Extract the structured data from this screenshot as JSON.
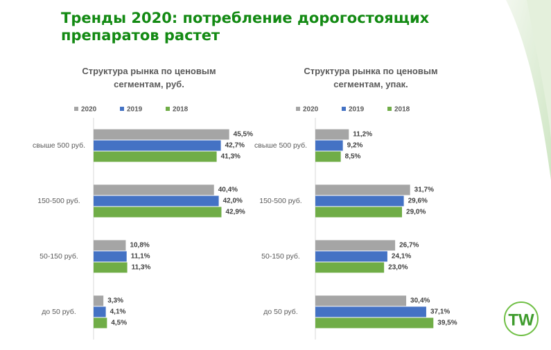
{
  "title": "Тренды 2020: потребление дорогостоящих препаратов растет",
  "logo_text": "TW",
  "chart_data": [
    {
      "type": "bar",
      "orientation": "horizontal",
      "title": "Структура рынка по ценовым сегментам, руб.",
      "categories": [
        "свыше 500 руб.",
        "150-500 руб.",
        "50-150 руб.",
        "до 50 руб."
      ],
      "series": [
        {
          "name": "2020",
          "color": "#a5a5a5",
          "values": [
            45.5,
            40.4,
            10.8,
            3.3
          ],
          "value_labels": [
            "45,5%",
            "40,4%",
            "10,8%",
            "3,3%"
          ]
        },
        {
          "name": "2019",
          "color": "#4472c4",
          "values": [
            42.7,
            42.0,
            11.1,
            4.1
          ],
          "value_labels": [
            "42,7%",
            "42,0%",
            "11,1%",
            "4,1%"
          ]
        },
        {
          "name": "2018",
          "color": "#70ad47",
          "values": [
            41.3,
            42.9,
            11.3,
            4.5
          ],
          "value_labels": [
            "41,3%",
            "42,9%",
            "11,3%",
            "4,5%"
          ]
        }
      ],
      "xlim": [
        0,
        50
      ],
      "legend": "top"
    },
    {
      "type": "bar",
      "orientation": "horizontal",
      "title": "Структура рынка по ценовым сегментам, упак.",
      "categories": [
        "свыше 500 руб.",
        "150-500 руб.",
        "50-150 руб.",
        "до 50 руб."
      ],
      "series": [
        {
          "name": "2020",
          "color": "#a5a5a5",
          "values": [
            11.2,
            31.7,
            26.7,
            30.4
          ],
          "value_labels": [
            "11,2%",
            "31,7%",
            "26,7%",
            "30,4%"
          ]
        },
        {
          "name": "2019",
          "color": "#4472c4",
          "values": [
            9.2,
            29.6,
            24.1,
            37.1
          ],
          "value_labels": [
            "9,2%",
            "29,6%",
            "24,1%",
            "37,1%"
          ]
        },
        {
          "name": "2018",
          "color": "#70ad47",
          "values": [
            8.5,
            29.0,
            23.0,
            39.5
          ],
          "value_labels": [
            "8,5%",
            "29,0%",
            "23,0%",
            "39,5%"
          ]
        }
      ],
      "xlim": [
        0,
        45
      ],
      "legend": "top"
    }
  ]
}
